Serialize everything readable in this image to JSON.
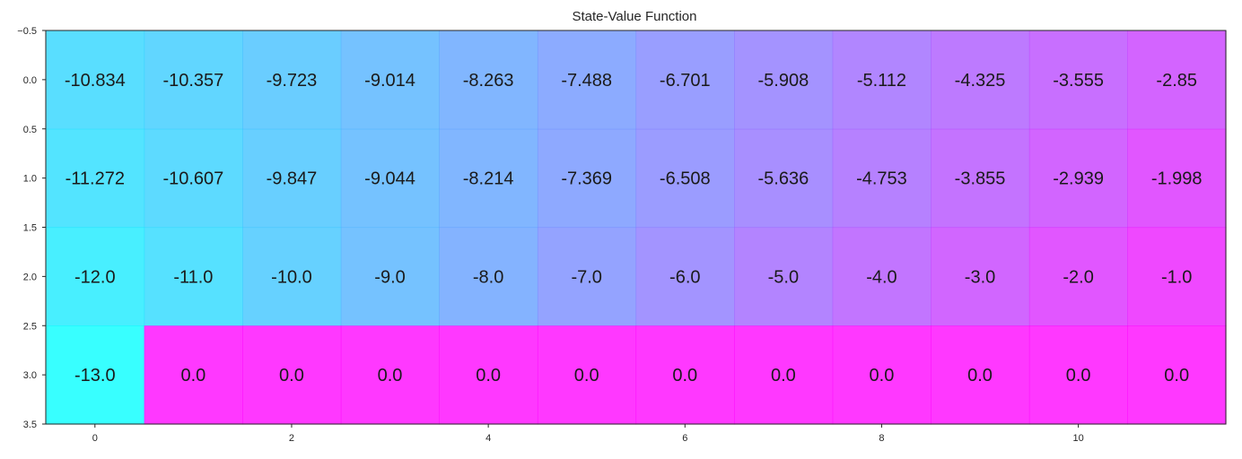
{
  "chart_data": {
    "type": "heatmap",
    "title": "State-Value Function",
    "xlabel": "",
    "ylabel": "",
    "colormap": "cool",
    "color_range": [
      -13.0,
      0.0
    ],
    "grid": false,
    "x_ticks": [
      0,
      2,
      4,
      6,
      8,
      10
    ],
    "x_tick_labels": [
      "0",
      "2",
      "4",
      "6",
      "8",
      "10"
    ],
    "xlim": [
      -0.5,
      11.5
    ],
    "y_ticks": [
      -0.5,
      0.0,
      0.5,
      1.0,
      1.5,
      2.0,
      2.5,
      3.0,
      3.5
    ],
    "y_tick_labels": [
      "−0.5",
      "0.0",
      "0.5",
      "1.0",
      "1.5",
      "2.0",
      "2.5",
      "3.0",
      "3.5"
    ],
    "ylim": [
      3.5,
      -0.5
    ],
    "rows": 4,
    "cols": 12,
    "values": [
      [
        -10.834,
        -10.357,
        -9.723,
        -9.014,
        -8.263,
        -7.488,
        -6.701,
        -5.908,
        -5.112,
        -4.325,
        -3.555,
        -2.85
      ],
      [
        -11.272,
        -10.607,
        -9.847,
        -9.044,
        -8.214,
        -7.369,
        -6.508,
        -5.636,
        -4.753,
        -3.855,
        -2.939,
        -1.998
      ],
      [
        -12.0,
        -11.0,
        -10.0,
        -9.0,
        -8.0,
        -7.0,
        -6.0,
        -5.0,
        -4.0,
        -3.0,
        -2.0,
        -1.0
      ],
      [
        -13.0,
        0.0,
        0.0,
        0.0,
        0.0,
        0.0,
        0.0,
        0.0,
        0.0,
        0.0,
        0.0,
        0.0
      ]
    ],
    "cell_labels": [
      [
        "-10.834",
        "-10.357",
        "-9.723",
        "-9.014",
        "-8.263",
        "-7.488",
        "-6.701",
        "-5.908",
        "-5.112",
        "-4.325",
        "-3.555",
        "-2.85"
      ],
      [
        "-11.272",
        "-10.607",
        "-9.847",
        "-9.044",
        "-8.214",
        "-7.369",
        "-6.508",
        "-5.636",
        "-4.753",
        "-3.855",
        "-2.939",
        "-1.998"
      ],
      [
        "-12.0",
        "-11.0",
        "-10.0",
        "-9.0",
        "-8.0",
        "-7.0",
        "-6.0",
        "-5.0",
        "-4.0",
        "-3.0",
        "-2.0",
        "-1.0"
      ],
      [
        "-13.0",
        "0.0",
        "0.0",
        "0.0",
        "0.0",
        "0.0",
        "0.0",
        "0.0",
        "0.0",
        "0.0",
        "0.0",
        "0.0"
      ]
    ]
  }
}
